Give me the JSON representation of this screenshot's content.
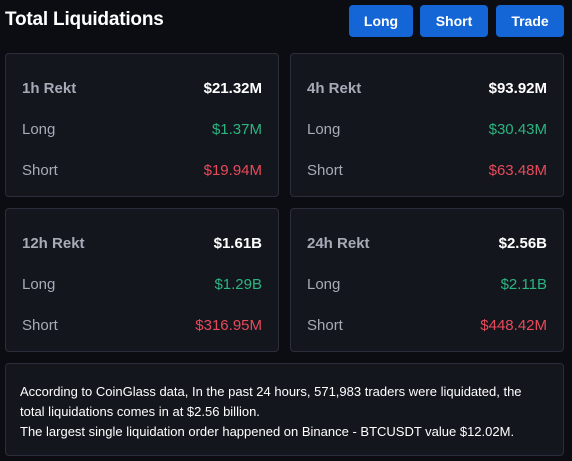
{
  "header": {
    "title": "Total Liquidations",
    "buttons": {
      "long": "Long",
      "short": "Short",
      "trade": "Trade"
    }
  },
  "cards": [
    {
      "period": "1h Rekt",
      "total": "$21.32M",
      "long_label": "Long",
      "long_value": "$1.37M",
      "short_label": "Short",
      "short_value": "$19.94M"
    },
    {
      "period": "4h Rekt",
      "total": "$93.92M",
      "long_label": "Long",
      "long_value": "$30.43M",
      "short_label": "Short",
      "short_value": "$63.48M"
    },
    {
      "period": "12h Rekt",
      "total": "$1.61B",
      "long_label": "Long",
      "long_value": "$1.29B",
      "short_label": "Short",
      "short_value": "$316.95M"
    },
    {
      "period": "24h Rekt",
      "total": "$2.56B",
      "long_label": "Long",
      "long_value": "$2.11B",
      "short_label": "Short",
      "short_value": "$448.42M"
    }
  ],
  "info": {
    "line1": "According to CoinGlass data, In the past 24 hours, 571,983 traders were liquidated, the total liquidations comes in at $2.56 billion.",
    "line2": "The largest single liquidation order happened on Binance - BTCUSDT value $12.02M."
  },
  "colors": {
    "background": "#0b0d12",
    "card": "#14161e",
    "button": "#1466d6",
    "long": "#2bb57f",
    "short": "#e84a5a"
  }
}
